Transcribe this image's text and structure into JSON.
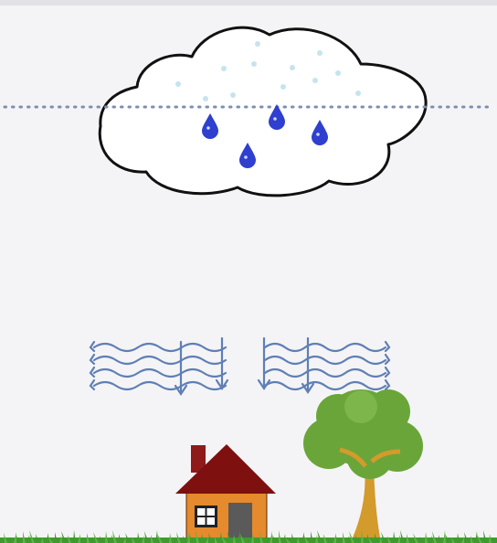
{
  "scene": {
    "colors": {
      "background": "#f4f4f6",
      "top_strip": "#e2e2e6",
      "cloud_fill": "#ffffff",
      "cloud_outline": "#111111",
      "freezing_line": "#7d8fb0",
      "ice_crystals": "#c6e4ef",
      "rain_drop": "#2f3fcf",
      "wind_arrows": "#5f7fb5",
      "house_wall": "#e58a2d",
      "house_roof": "#7e1010",
      "house_chimney": "#8f1a1a",
      "house_door": "#5a5a5a",
      "house_window": "#ffffff",
      "tree_foliage": "#6aa53a",
      "tree_trunk": "#d39a2c",
      "grass": "#3f9a2f"
    },
    "elements": {
      "cloud": "cloud",
      "freezing_line": "dotted-line",
      "rain_drops": "rain-drop-icon",
      "ice_crystals": "snowflake-dot",
      "wind": "wind-arrow-icon",
      "house": "house-icon",
      "tree": "tree-icon",
      "grass": "grass"
    },
    "counts": {
      "rain_drops": 4,
      "ice_crystals": 12,
      "wind_groups": 2
    }
  }
}
